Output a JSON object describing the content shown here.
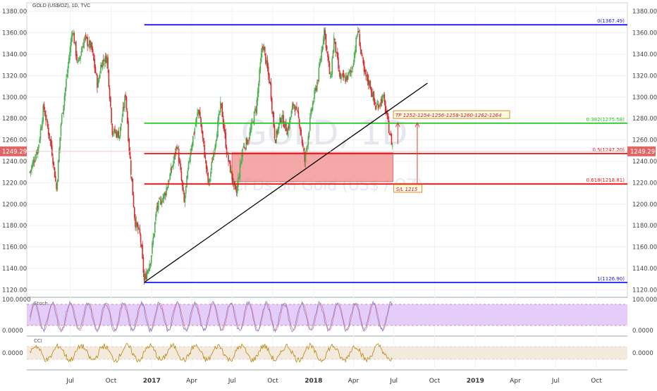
{
  "title": "GOLD (US$/OZ), 1D, TVC",
  "watermark": {
    "symbol": "GOLD, 1D",
    "subtitle": "CFDs on Gold (US$ / OZ)"
  },
  "colors": {
    "up": "#4caf50",
    "down": "#d32f2f",
    "fib_blue": "#1a1aff",
    "fib_green": "#22cc22",
    "fib_red": "#ee1111",
    "trend": "#000000",
    "box": "#f28b8b",
    "stoch_band": "#e4cdfb",
    "cci_band": "#f3e9dd",
    "stoch_line": "#8a7fd4",
    "cci_line": "#b8860b",
    "current_price_bg": "#e06666"
  },
  "chart_data": {
    "type": "candlestick",
    "price_axis": {
      "ticks": [
        "1380.00",
        "1360.00",
        "1340.00",
        "1320.00",
        "1300.00",
        "1280.00",
        "1260.00",
        "1240.00",
        "1220.00",
        "1200.00",
        "1180.00",
        "1160.00",
        "1140.00",
        "1120.00"
      ],
      "ylim": [
        1113,
        1388
      ]
    },
    "time_axis": {
      "labels": [
        "Jul",
        "Oct",
        "2017",
        "Apr",
        "Jul",
        "Oct",
        "2018",
        "Apr",
        "Jul",
        "Oct",
        "2019",
        "Apr",
        "Jul",
        "Oct"
      ],
      "bold": [
        "2017",
        "2018",
        "2019"
      ]
    },
    "current_price": "1249.29",
    "fib_levels": [
      {
        "label": "0(1367.49)",
        "value": 1367.49,
        "color": "fib_blue"
      },
      {
        "label": "0.382(1275.58)",
        "value": 1275.58,
        "color": "fib_green"
      },
      {
        "label": "0.5(1247.20)",
        "value": 1247.2,
        "color": "fib_red"
      },
      {
        "label": "0.618(1218.81)",
        "value": 1218.81,
        "color": "fib_red"
      },
      {
        "label": "1(1126.90)",
        "value": 1126.9,
        "color": "fib_blue"
      }
    ],
    "trendline": {
      "from": [
        "2016-12-15",
        1126.9
      ],
      "to": [
        "2018-09-15",
        1313
      ]
    },
    "zone": {
      "x0": "2017-07-01",
      "x1": "2018-06-29",
      "y0": 1221,
      "y1": 1248
    },
    "annotations": [
      {
        "text": "TP 1252-1254-1256-1258-1260-1262-1264",
        "date": "2018-06-30",
        "value": 1282
      },
      {
        "text": "S/L 1215",
        "date": "2018-07-01",
        "value": 1213
      }
    ],
    "close_points": [
      [
        "2016-04-01",
        1230
      ],
      [
        "2016-04-20",
        1254
      ],
      [
        "2016-05-02",
        1291
      ],
      [
        "2016-05-20",
        1252
      ],
      [
        "2016-05-31",
        1214
      ],
      [
        "2016-06-10",
        1275
      ],
      [
        "2016-06-24",
        1322
      ],
      [
        "2016-07-06",
        1364
      ],
      [
        "2016-07-18",
        1330
      ],
      [
        "2016-08-02",
        1355
      ],
      [
        "2016-08-18",
        1346
      ],
      [
        "2016-09-01",
        1310
      ],
      [
        "2016-09-09",
        1332
      ],
      [
        "2016-09-22",
        1337
      ],
      [
        "2016-10-04",
        1268
      ],
      [
        "2016-10-20",
        1265
      ],
      [
        "2016-11-03",
        1303
      ],
      [
        "2016-11-10",
        1257
      ],
      [
        "2016-11-24",
        1184
      ],
      [
        "2016-12-06",
        1170
      ],
      [
        "2016-12-15",
        1128
      ],
      [
        "2016-12-30",
        1150
      ],
      [
        "2017-01-12",
        1196
      ],
      [
        "2017-01-31",
        1210
      ],
      [
        "2017-02-15",
        1233
      ],
      [
        "2017-02-27",
        1256
      ],
      [
        "2017-03-15",
        1201
      ],
      [
        "2017-03-29",
        1250
      ],
      [
        "2017-04-17",
        1290
      ],
      [
        "2017-05-09",
        1217
      ],
      [
        "2017-06-06",
        1294
      ],
      [
        "2017-06-20",
        1246
      ],
      [
        "2017-07-10",
        1208
      ],
      [
        "2017-07-25",
        1252
      ],
      [
        "2017-08-08",
        1262
      ],
      [
        "2017-08-25",
        1292
      ],
      [
        "2017-09-08",
        1351
      ],
      [
        "2017-09-25",
        1311
      ],
      [
        "2017-10-06",
        1260
      ],
      [
        "2017-10-20",
        1282
      ],
      [
        "2017-11-03",
        1268
      ],
      [
        "2017-11-17",
        1295
      ],
      [
        "2017-11-30",
        1277
      ],
      [
        "2017-12-12",
        1240
      ],
      [
        "2017-12-28",
        1290
      ],
      [
        "2018-01-12",
        1320
      ],
      [
        "2018-01-25",
        1364
      ],
      [
        "2018-02-08",
        1315
      ],
      [
        "2018-02-16",
        1355
      ],
      [
        "2018-03-01",
        1318
      ],
      [
        "2018-03-15",
        1317
      ],
      [
        "2018-03-28",
        1325
      ],
      [
        "2018-04-11",
        1363
      ],
      [
        "2018-04-25",
        1322
      ],
      [
        "2018-05-08",
        1312
      ],
      [
        "2018-05-21",
        1290
      ],
      [
        "2018-06-07",
        1300
      ],
      [
        "2018-06-15",
        1282
      ],
      [
        "2018-06-21",
        1268
      ],
      [
        "2018-06-29",
        1252
      ]
    ],
    "stoch_axis": {
      "ticks": [
        "100.0000",
        "0.0000"
      ]
    },
    "cci_axis": {
      "ticks": [
        "0.0000"
      ]
    },
    "indicators": [
      {
        "name": "Stoch"
      },
      {
        "name": "CCI"
      }
    ]
  }
}
